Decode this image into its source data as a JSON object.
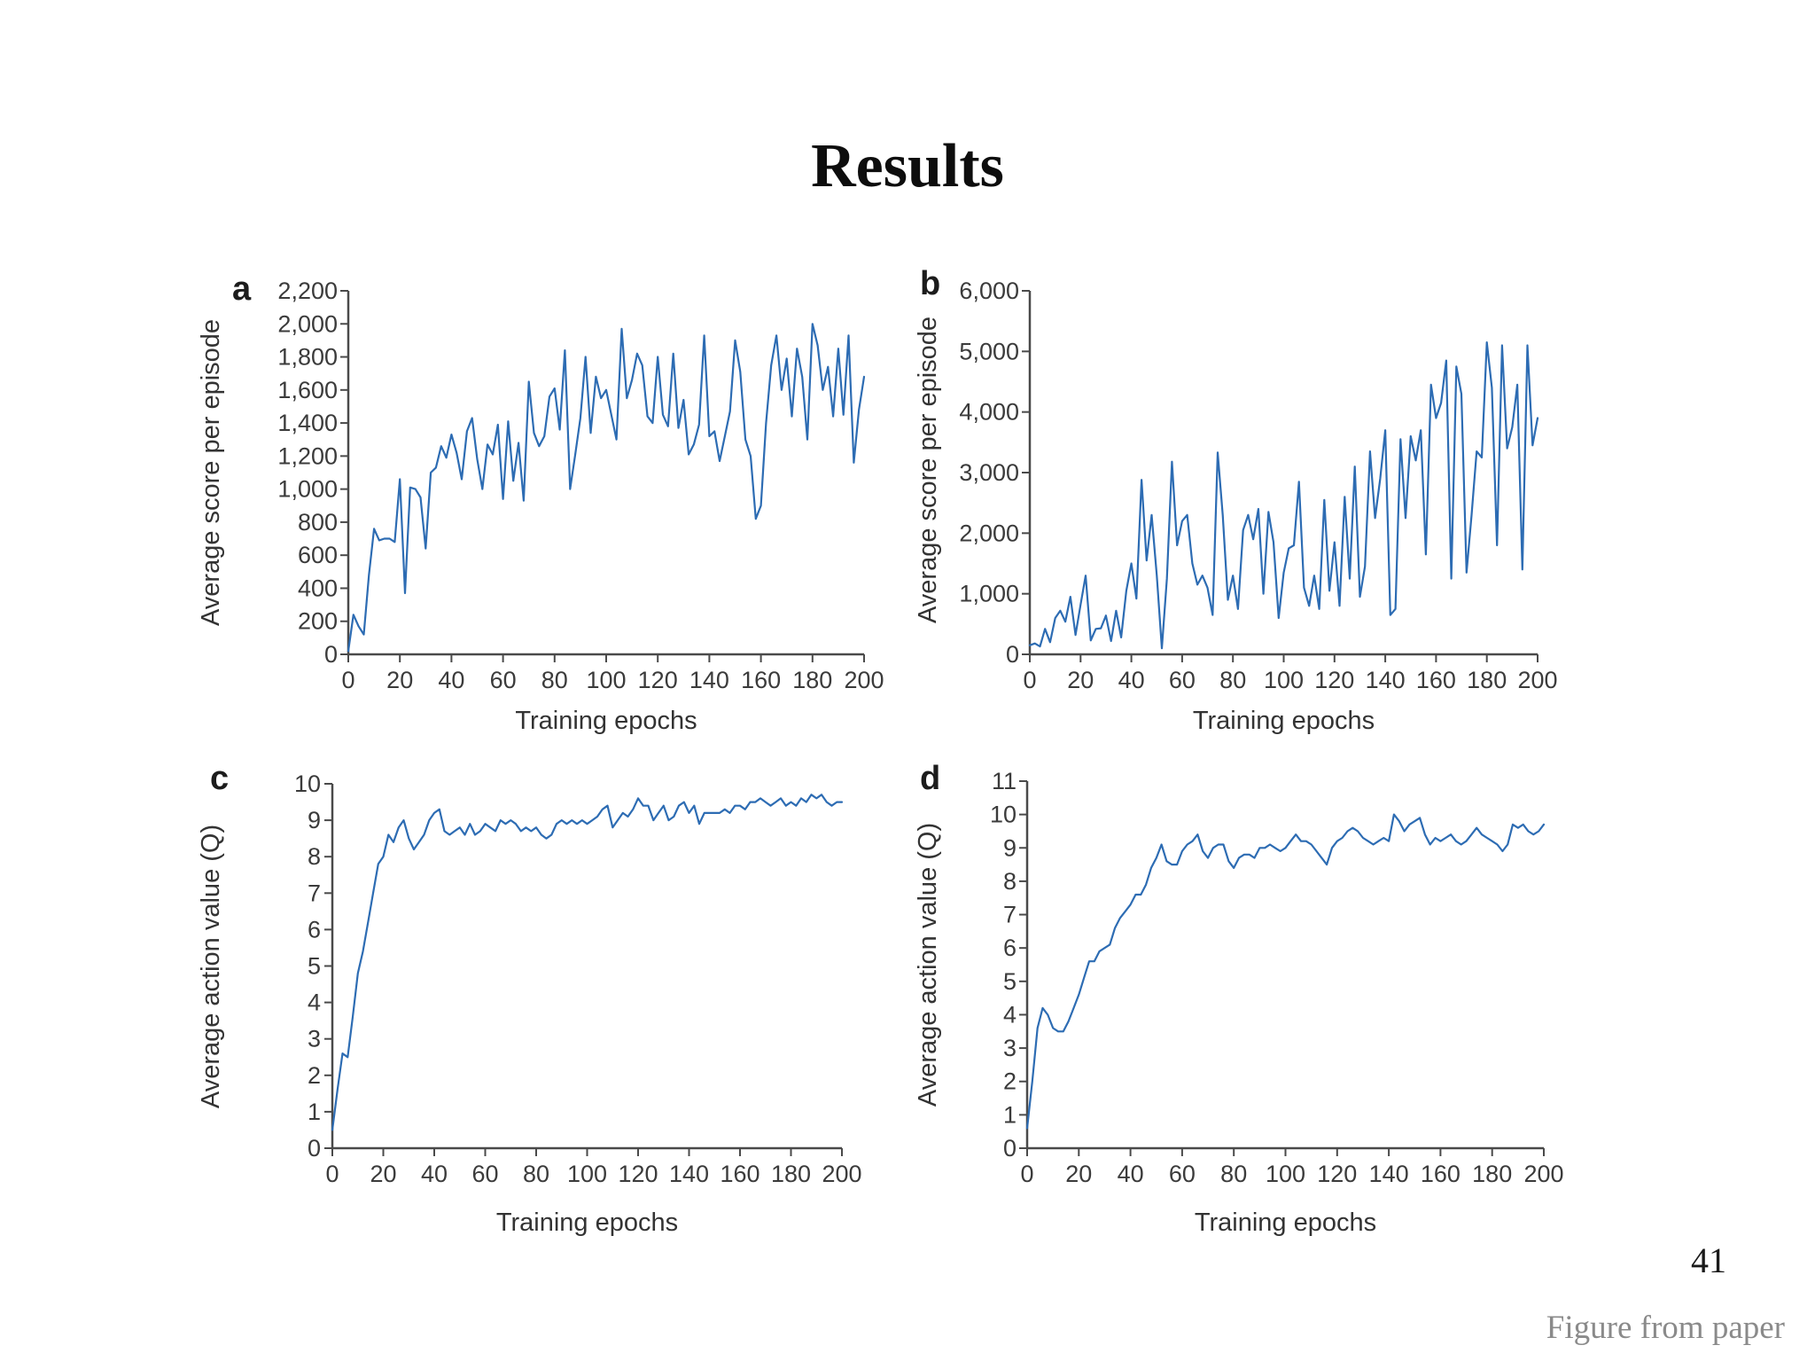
{
  "slide": {
    "title": "Results",
    "page_number": "41",
    "credit": "Figure from paper"
  },
  "colors": {
    "line": "#2d6cb3",
    "axis": "#4a4a4a",
    "tick_text": "#3b3b3b",
    "title_text": "#0d0d0d",
    "credit_text": "#8a8a8a",
    "background": "#ffffff"
  },
  "chart_data": [
    {
      "id": "a",
      "panel_label": "a",
      "type": "line",
      "xlabel": "Training epochs",
      "ylabel": "Average score per episode",
      "xlim": [
        0,
        200
      ],
      "ylim": [
        0,
        2200
      ],
      "grid": false,
      "legend": null,
      "xticks": [
        0,
        20,
        40,
        60,
        80,
        100,
        120,
        140,
        160,
        180,
        200
      ],
      "xtick_labels": [
        "0",
        "20",
        "40",
        "60",
        "80",
        "100",
        "120",
        "140",
        "160",
        "180",
        "200"
      ],
      "yticks": [
        0,
        200,
        400,
        600,
        800,
        1000,
        1200,
        1400,
        1600,
        1800,
        2000,
        2200
      ],
      "ytick_labels": [
        "0",
        "200",
        "400",
        "600",
        "800",
        "1,000",
        "1,200",
        "1,400",
        "1,600",
        "1,800",
        "2,000",
        "2,200"
      ],
      "x_start": 0,
      "x_step": 2,
      "values": [
        20,
        240,
        170,
        120,
        480,
        760,
        690,
        700,
        700,
        680,
        1060,
        370,
        1010,
        1000,
        950,
        640,
        1100,
        1130,
        1260,
        1190,
        1330,
        1220,
        1060,
        1350,
        1430,
        1180,
        1000,
        1270,
        1210,
        1390,
        940,
        1410,
        1050,
        1280,
        930,
        1650,
        1340,
        1260,
        1320,
        1560,
        1610,
        1360,
        1840,
        1000,
        1210,
        1430,
        1800,
        1340,
        1680,
        1550,
        1600,
        1450,
        1300,
        1970,
        1550,
        1660,
        1820,
        1750,
        1440,
        1400,
        1800,
        1450,
        1380,
        1820,
        1370,
        1540,
        1210,
        1270,
        1390,
        1930,
        1320,
        1350,
        1170,
        1320,
        1470,
        1900,
        1710,
        1300,
        1200,
        820,
        900,
        1400,
        1750,
        1930,
        1600,
        1790,
        1440,
        1850,
        1680,
        1300,
        2000,
        1870,
        1600,
        1740,
        1440,
        1850,
        1450,
        1930,
        1160,
        1480,
        1680
      ]
    },
    {
      "id": "b",
      "panel_label": "b",
      "type": "line",
      "xlabel": "Training epochs",
      "ylabel": "Average score per episode",
      "xlim": [
        0,
        200
      ],
      "ylim": [
        0,
        6000
      ],
      "grid": false,
      "legend": null,
      "xticks": [
        0,
        20,
        40,
        60,
        80,
        100,
        120,
        140,
        160,
        180,
        200
      ],
      "xtick_labels": [
        "0",
        "20",
        "40",
        "60",
        "80",
        "100",
        "120",
        "140",
        "160",
        "180",
        "200"
      ],
      "yticks": [
        0,
        1000,
        2000,
        3000,
        4000,
        5000,
        6000
      ],
      "ytick_labels": [
        "0",
        "1,000",
        "2,000",
        "3,000",
        "4,000",
        "5,000",
        "6,000"
      ],
      "x_start": 0,
      "x_step": 2,
      "values": [
        150,
        180,
        130,
        420,
        200,
        600,
        720,
        540,
        950,
        320,
        820,
        1300,
        230,
        420,
        430,
        640,
        220,
        720,
        280,
        1050,
        1500,
        920,
        2880,
        1550,
        2300,
        1300,
        100,
        1250,
        3180,
        1800,
        2200,
        2300,
        1500,
        1150,
        1300,
        1100,
        650,
        3330,
        2300,
        900,
        1300,
        750,
        2050,
        2300,
        1900,
        2400,
        1000,
        2350,
        1850,
        600,
        1350,
        1750,
        1800,
        2850,
        1100,
        800,
        1300,
        750,
        2550,
        1050,
        1850,
        800,
        2600,
        1250,
        3100,
        950,
        1450,
        3350,
        2250,
        2900,
        3700,
        650,
        750,
        3550,
        2250,
        3600,
        3200,
        3700,
        1650,
        4450,
        3900,
        4150,
        4850,
        1250,
        4750,
        4300,
        1350,
        2300,
        3350,
        3250,
        5150,
        4400,
        1800,
        5100,
        3400,
        3750,
        4450,
        1400,
        5100,
        3450,
        3900
      ]
    },
    {
      "id": "c",
      "panel_label": "c",
      "type": "line",
      "xlabel": "Training epochs",
      "ylabel": "Average action value (Q)",
      "xlim": [
        0,
        200
      ],
      "ylim": [
        0,
        10
      ],
      "grid": false,
      "legend": null,
      "xticks": [
        0,
        20,
        40,
        60,
        80,
        100,
        120,
        140,
        160,
        180,
        200
      ],
      "xtick_labels": [
        "0",
        "20",
        "40",
        "60",
        "80",
        "100",
        "120",
        "140",
        "160",
        "180",
        "200"
      ],
      "yticks": [
        0,
        1,
        2,
        3,
        4,
        5,
        6,
        7,
        8,
        9,
        10
      ],
      "ytick_labels": [
        "0",
        "1",
        "2",
        "3",
        "4",
        "5",
        "6",
        "7",
        "8",
        "9",
        "10"
      ],
      "x_start": 0,
      "x_step": 2,
      "values": [
        0.5,
        1.6,
        2.6,
        2.5,
        3.6,
        4.8,
        5.4,
        6.2,
        7.0,
        7.8,
        8.0,
        8.6,
        8.4,
        8.8,
        9.0,
        8.5,
        8.2,
        8.4,
        8.6,
        9.0,
        9.2,
        9.3,
        8.7,
        8.6,
        8.7,
        8.8,
        8.6,
        8.9,
        8.6,
        8.7,
        8.9,
        8.8,
        8.7,
        9.0,
        8.9,
        9.0,
        8.9,
        8.7,
        8.8,
        8.7,
        8.8,
        8.6,
        8.5,
        8.6,
        8.9,
        9.0,
        8.9,
        9.0,
        8.9,
        9.0,
        8.9,
        9.0,
        9.1,
        9.3,
        9.4,
        8.8,
        9.0,
        9.2,
        9.1,
        9.3,
        9.6,
        9.4,
        9.4,
        9.0,
        9.2,
        9.4,
        9.0,
        9.1,
        9.4,
        9.5,
        9.2,
        9.4,
        8.9,
        9.2,
        9.2,
        9.2,
        9.2,
        9.3,
        9.2,
        9.4,
        9.4,
        9.3,
        9.5,
        9.5,
        9.6,
        9.5,
        9.4,
        9.5,
        9.6,
        9.4,
        9.5,
        9.4,
        9.6,
        9.5,
        9.7,
        9.6,
        9.7,
        9.5,
        9.4,
        9.5,
        9.5
      ]
    },
    {
      "id": "d",
      "panel_label": "d",
      "type": "line",
      "xlabel": "Training epochs",
      "ylabel": "Average action value (Q)",
      "xlim": [
        0,
        200
      ],
      "ylim": [
        0,
        11
      ],
      "grid": false,
      "legend": null,
      "xticks": [
        0,
        20,
        40,
        60,
        80,
        100,
        120,
        140,
        160,
        180,
        200
      ],
      "xtick_labels": [
        "0",
        "20",
        "40",
        "60",
        "80",
        "100",
        "120",
        "140",
        "160",
        "180",
        "200"
      ],
      "yticks": [
        0,
        1,
        2,
        3,
        4,
        5,
        6,
        7,
        8,
        9,
        10,
        11
      ],
      "ytick_labels": [
        "0",
        "1",
        "2",
        "3",
        "4",
        "5",
        "6",
        "7",
        "8",
        "9",
        "10",
        "11"
      ],
      "x_start": 0,
      "x_step": 2,
      "values": [
        0.6,
        2.0,
        3.6,
        4.2,
        4.0,
        3.6,
        3.5,
        3.5,
        3.8,
        4.2,
        4.6,
        5.1,
        5.6,
        5.6,
        5.9,
        6.0,
        6.1,
        6.6,
        6.9,
        7.1,
        7.3,
        7.6,
        7.6,
        7.9,
        8.4,
        8.7,
        9.1,
        8.6,
        8.5,
        8.5,
        8.9,
        9.1,
        9.2,
        9.4,
        8.9,
        8.7,
        9.0,
        9.1,
        9.1,
        8.6,
        8.4,
        8.7,
        8.8,
        8.8,
        8.7,
        9.0,
        9.0,
        9.1,
        9.0,
        8.9,
        9.0,
        9.2,
        9.4,
        9.2,
        9.2,
        9.1,
        8.9,
        8.7,
        8.5,
        9.0,
        9.2,
        9.3,
        9.5,
        9.6,
        9.5,
        9.3,
        9.2,
        9.1,
        9.2,
        9.3,
        9.2,
        10.0,
        9.8,
        9.5,
        9.7,
        9.8,
        9.9,
        9.4,
        9.1,
        9.3,
        9.2,
        9.3,
        9.4,
        9.2,
        9.1,
        9.2,
        9.4,
        9.6,
        9.4,
        9.3,
        9.2,
        9.1,
        8.9,
        9.1,
        9.7,
        9.6,
        9.7,
        9.5,
        9.4,
        9.5,
        9.7
      ]
    }
  ]
}
